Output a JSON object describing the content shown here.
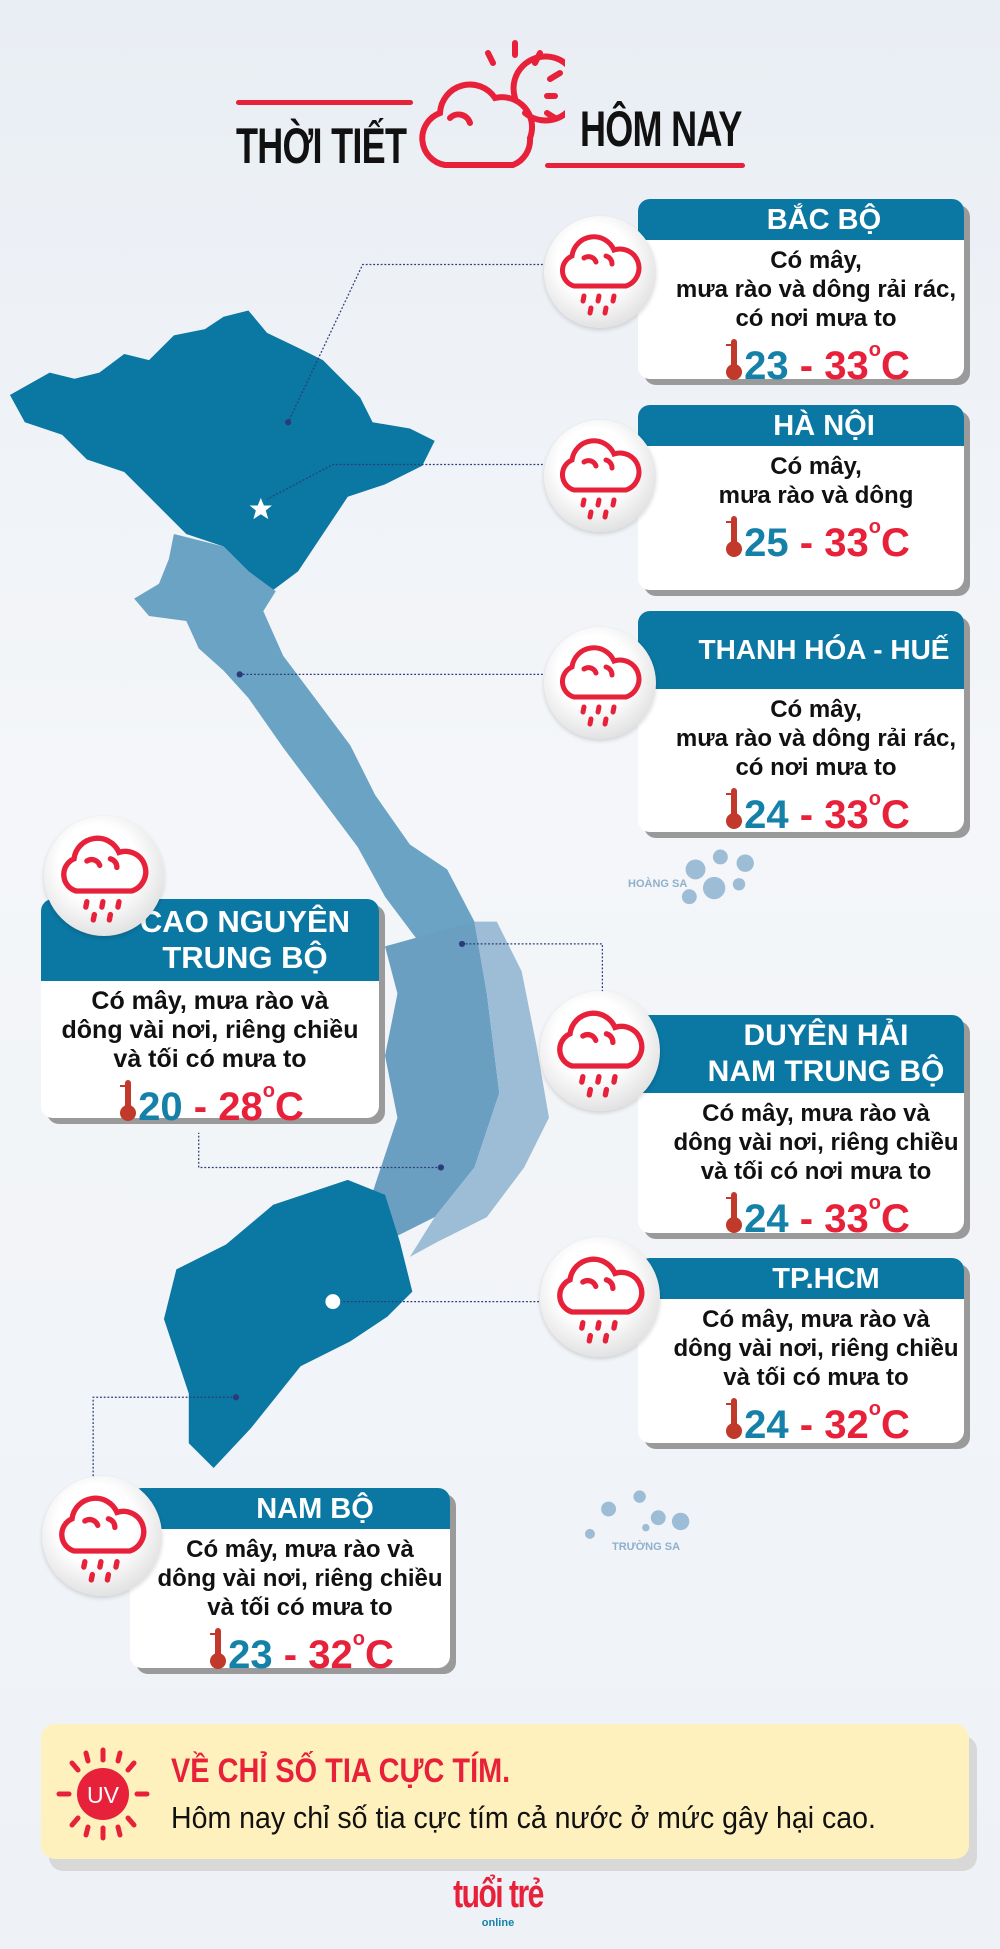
{
  "header": {
    "title_left": "THỜI TIẾT",
    "title_right": "HÔM NAY",
    "icon": "cloud-sun-icon"
  },
  "colors": {
    "accent_red": "#e8213a",
    "brand_blue": "#0b77a3",
    "uv_bg": "#fff1bd"
  },
  "regions": [
    {
      "name": "BẮC BỘ",
      "lines": [
        "Có mây,",
        "mưa rào và dông rải rác,",
        "có nơi mưa to"
      ],
      "low": "23",
      "high": "33",
      "icon": "rain-cloud-icon"
    },
    {
      "name": "HÀ NỘI",
      "lines": [
        "Có mây,",
        "mưa rào và dông"
      ],
      "low": "25",
      "high": "33",
      "icon": "rain-cloud-icon"
    },
    {
      "name": "THANH HÓA - HUẾ",
      "lines": [
        "Có mây,",
        "mưa rào và dông rải rác,",
        "có nơi mưa to"
      ],
      "low": "24",
      "high": "33",
      "icon": "rain-cloud-icon"
    },
    {
      "name": "CAO NGUYÊN TRUNG BỘ",
      "name_lines": [
        "CAO NGUYÊN",
        "TRUNG BỘ"
      ],
      "lines": [
        "Có mây, mưa rào và",
        "dông vài nơi, riêng chiều",
        "và tối có mưa to"
      ],
      "low": "20",
      "high": "28",
      "icon": "rain-cloud-icon"
    },
    {
      "name": "DUYÊN HẢI NAM TRUNG BỘ",
      "name_lines": [
        "DUYÊN HẢI",
        "NAM TRUNG BỘ"
      ],
      "lines": [
        "Có mây, mưa rào và",
        "dông vài nơi, riêng chiều",
        "và tối có nơi mưa to"
      ],
      "low": "24",
      "high": "33",
      "icon": "rain-cloud-icon"
    },
    {
      "name": "TP.HCM",
      "lines": [
        "Có mây, mưa rào và",
        "dông vài nơi, riêng chiều",
        "và tối có mưa to"
      ],
      "low": "24",
      "high": "32",
      "icon": "rain-cloud-icon"
    },
    {
      "name": "NAM BỘ",
      "lines": [
        "Có mây, mưa rào và",
        "dông vài nơi, riêng chiều",
        "và tối có mưa to"
      ],
      "low": "23",
      "high": "32",
      "icon": "rain-cloud-icon"
    }
  ],
  "temp": {
    "sep": "-",
    "deg": "o",
    "unit": "C"
  },
  "map": {
    "hoang_sa": "HOÀNG SA",
    "truong_sa": "TRƯỜNG SA"
  },
  "uv": {
    "badge": "UV",
    "title": "VỀ CHỈ SỐ TIA CỰC TÍM.",
    "text": "Hôm nay chỉ số tia cực tím cả nước ở mức gây hại cao."
  },
  "logo": {
    "main": "tuổi trẻ",
    "sub": "online"
  }
}
